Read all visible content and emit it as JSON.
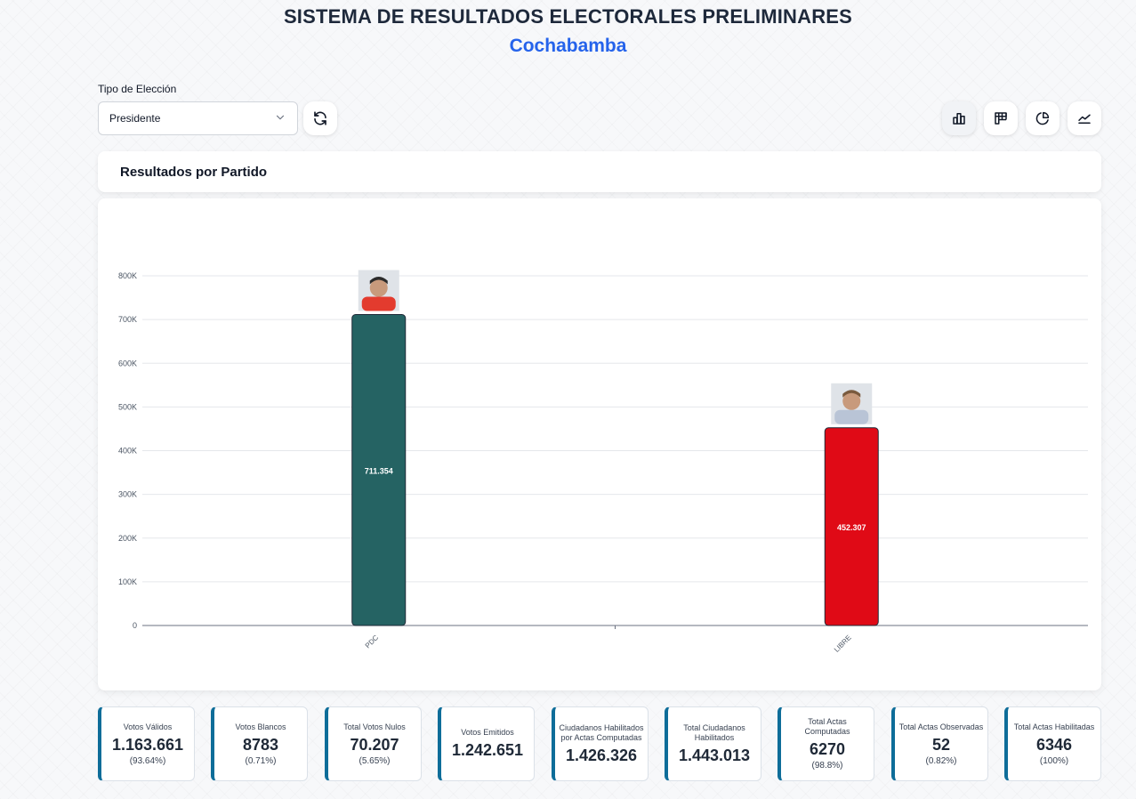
{
  "header": {
    "title": "SISTEMA DE RESULTADOS ELECTORALES PRELIMINARES",
    "subtitle": "Cochabamba"
  },
  "filters": {
    "election_type_label": "Tipo de Elección",
    "election_type_value": "Presidente"
  },
  "toolbar": {
    "icons": [
      "refresh-icon",
      "bar-chart-icon",
      "table-grid-icon",
      "pie-chart-icon",
      "line-chart-icon"
    ]
  },
  "section": {
    "title": "Resultados por Partido"
  },
  "chart_data": {
    "type": "bar",
    "categories": [
      "PDC",
      "LIBRE"
    ],
    "values": [
      711354,
      452307
    ],
    "value_labels": [
      "711.354",
      "452.307"
    ],
    "colors": [
      "#256363",
      "#e00a16"
    ],
    "ylim": [
      0,
      800000
    ],
    "yticks": [
      0,
      100000,
      200000,
      300000,
      400000,
      500000,
      600000,
      700000,
      800000
    ],
    "ytick_labels": [
      "0",
      "100K",
      "200K",
      "300K",
      "400K",
      "500K",
      "600K",
      "700K",
      "800K"
    ],
    "grid": true,
    "candidate_photos": [
      "candidate-photo-pdc",
      "candidate-photo-libre"
    ]
  },
  "stats": [
    {
      "label": "Votos Válidos",
      "value": "1.163.661",
      "pct": "(93.64%)"
    },
    {
      "label": "Votos Blancos",
      "value": "8783",
      "pct": "(0.71%)"
    },
    {
      "label": "Total Votos Nulos",
      "value": "70.207",
      "pct": "(5.65%)"
    },
    {
      "label": "Votos Emitidos",
      "value": "1.242.651",
      "pct": ""
    },
    {
      "label": "Ciudadanos Habilitados por Actas Computadas",
      "value": "1.426.326",
      "pct": ""
    },
    {
      "label": "Total Ciudadanos Habilitados",
      "value": "1.443.013",
      "pct": ""
    },
    {
      "label": "Total Actas Computadas",
      "value": "6270",
      "pct": "(98.8%)"
    },
    {
      "label": "Total Actas Observadas",
      "value": "52",
      "pct": "(0.82%)"
    },
    {
      "label": "Total Actas Habilitadas",
      "value": "6346",
      "pct": "(100%)"
    }
  ],
  "colors": {
    "accent": "#2563eb",
    "stat_border": "#0e6d99"
  }
}
